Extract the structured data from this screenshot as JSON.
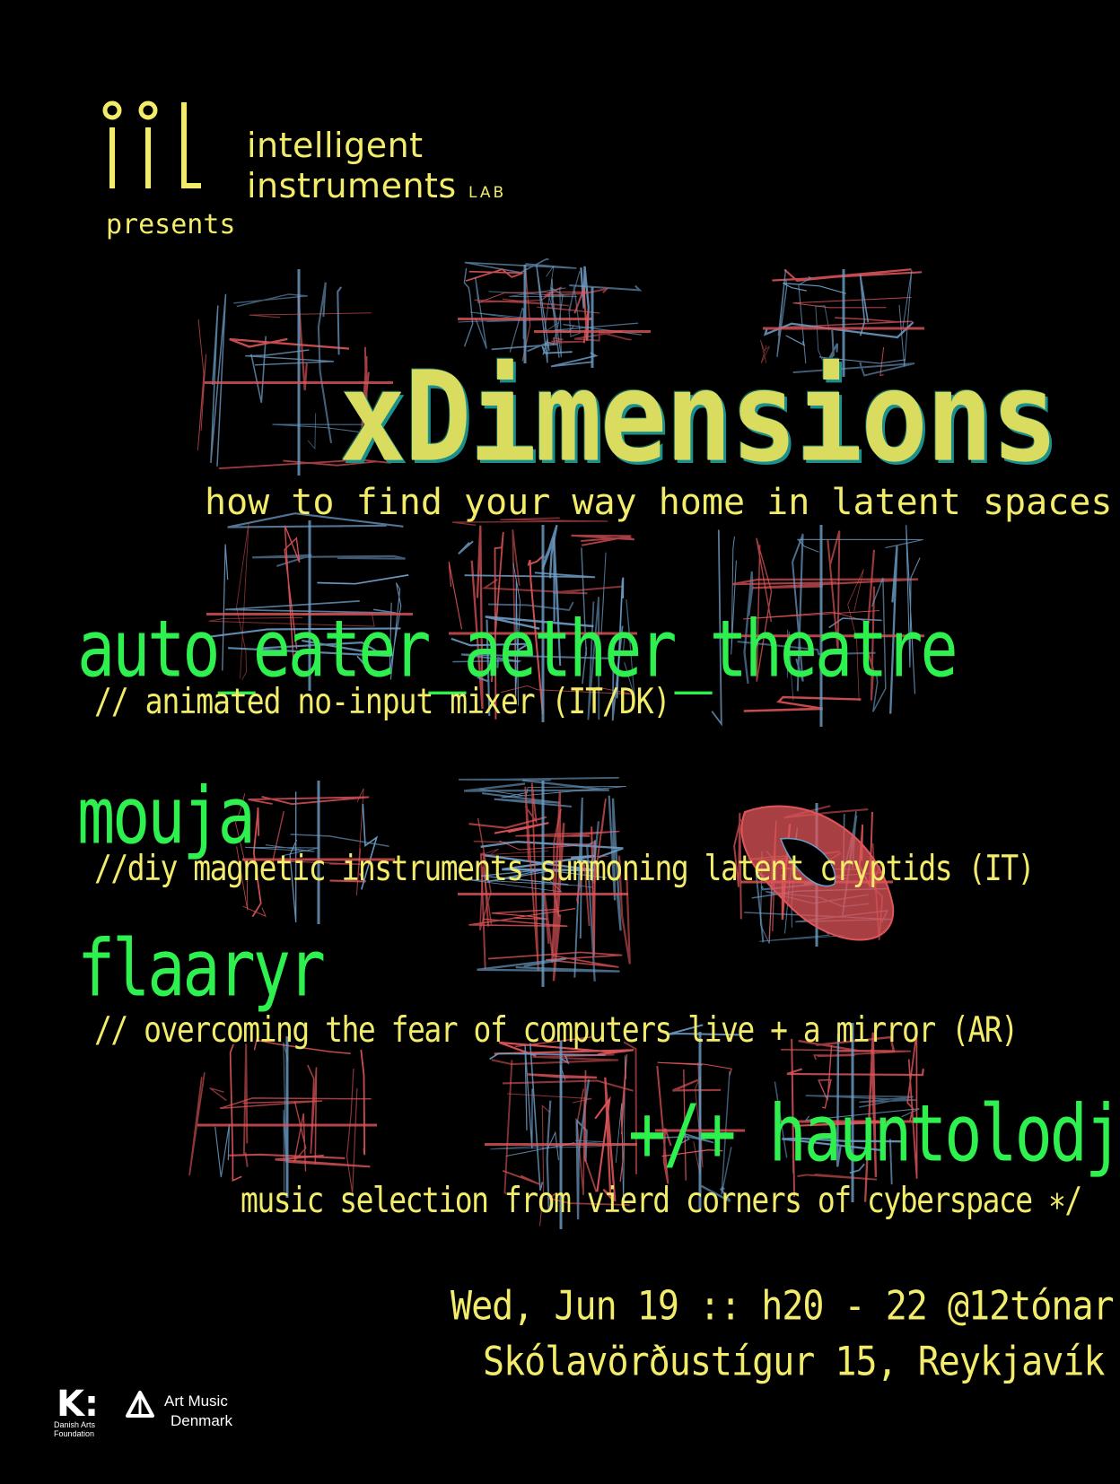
{
  "header": {
    "lab_line1": "intelligent",
    "lab_line2": "instruments",
    "lab_tag": "LAB",
    "presents": "presents",
    "logo_letters": "iiL"
  },
  "event": {
    "title": "xDimensions",
    "subtitle": "how to find your way home in latent spaces"
  },
  "acts": [
    {
      "name": "auto_eater_aether_theatre",
      "desc": "// animated no-input mixer (IT/DK)"
    },
    {
      "name": "mouja",
      "desc": "//diy magnetic instruments summoning latent cryptids (IT)"
    },
    {
      "name": "flaaryr",
      "desc": "// overcoming the fear of computers live + a mirror (AR)"
    },
    {
      "name": "+/+ hauntolodj",
      "desc": "music selection from vierd corners of cyberspace ∗/"
    }
  ],
  "details": {
    "date": "Wed, Jun 19 :: h20 - 22 @12tónar",
    "venue": "Skólavörðustígur 15, Reykjavík"
  },
  "sponsors": {
    "danish_arts_logo": "K:",
    "danish_arts_name": "Danish Arts Foundation",
    "art_music_line1": "Art Music",
    "art_music_line2": "Denmark"
  },
  "colors": {
    "background": "#000000",
    "yellow": "#f2ec6a",
    "title_yellow": "#d9dc5e",
    "title_shadow": "#1a8f8c",
    "green": "#2ef04e",
    "scribble_red": "#e0555a",
    "scribble_blue": "#6f9fc8",
    "white": "#ffffff"
  },
  "icons": [
    "iil-logo-icon",
    "danish-arts-foundation-logo-icon",
    "art-music-denmark-logo-icon"
  ]
}
